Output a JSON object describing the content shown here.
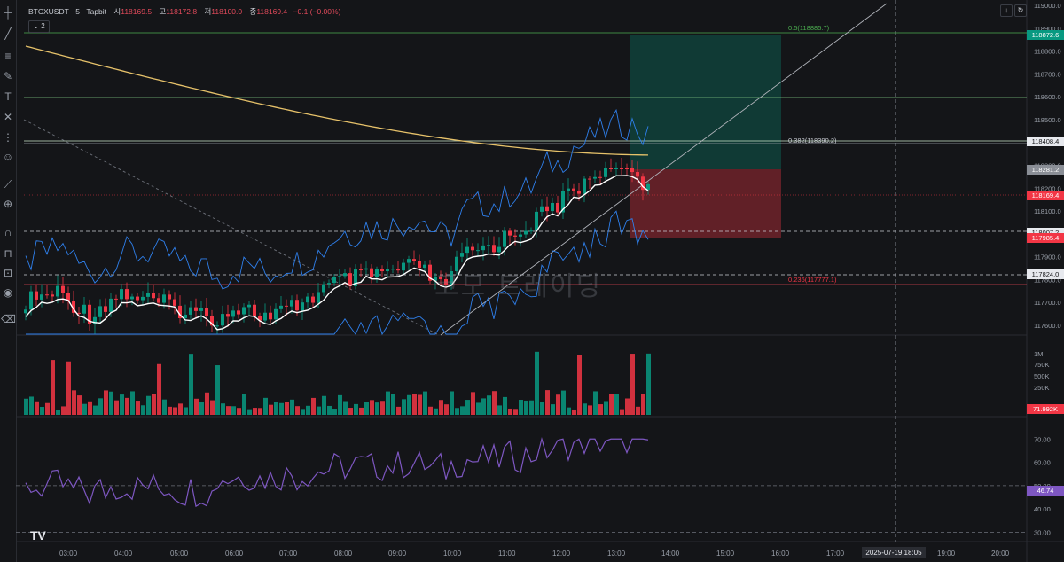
{
  "legend": {
    "symbol": "BTCXUSDT · 5 · Tapbit",
    "open_label": "시",
    "open": "118169.5",
    "high_label": "고",
    "high": "118172.8",
    "low_label": "저",
    "low": "118100.0",
    "close_label": "종",
    "close": "118169.4",
    "change": "−0.1 (−0.00%)",
    "collapse_label": "⌄ 2"
  },
  "price_axis": {
    "ticks": [
      "119000.0",
      "118900.0",
      "118800.0",
      "118700.0",
      "118600.0",
      "118500.0",
      "118400.0",
      "118300.0",
      "118200.0",
      "118100.0",
      "118000.0",
      "117900.0",
      "117800.0",
      "117700.0",
      "117600.0"
    ],
    "tags": [
      {
        "value": "118872.6",
        "color": "#089981"
      },
      {
        "value": "118408.4",
        "color": "#e7e9ee"
      },
      {
        "value": "118281.2",
        "color": "#8a8e96"
      },
      {
        "value": "118169.4",
        "color": "#f23645"
      },
      {
        "value": "118007.2",
        "color": "#e7e9ee"
      },
      {
        "value": "117985.4",
        "color": "#f23645"
      },
      {
        "value": "117824.0",
        "color": "#e7e9ee"
      }
    ]
  },
  "fib": {
    "level_05": "0.5(118885.7)",
    "level_0382": "0.382(118390.2)",
    "level_0236": "0.236(117777.1)"
  },
  "volume_axis": {
    "ticks": [
      "1M",
      "750K",
      "500K",
      "250K"
    ],
    "last": "71.992K"
  },
  "rsi_axis": {
    "ticks": [
      "70.00",
      "60.00",
      "50.00",
      "40.00",
      "30.00"
    ],
    "last": "46.74"
  },
  "time_axis": {
    "labels": [
      "03:00",
      "04:00",
      "05:00",
      "06:00",
      "07:00",
      "08:00",
      "09:00",
      "10:00",
      "11:00",
      "12:00",
      "13:00",
      "14:00",
      "15:00",
      "16:00",
      "17:00",
      "19:00",
      "20:00"
    ],
    "cursor": "2025-07-19  18:05"
  },
  "watermark": "코모 트레이딩",
  "logo": "TV",
  "icons": [
    "crosshair-icon",
    "trendline-icon",
    "horizontal-lines-icon",
    "brush-icon",
    "text-icon",
    "pattern-icon",
    "measure-icon",
    "emoji-icon",
    "ruler-icon",
    "zoom-icon",
    "magnet-icon",
    "lock-icon",
    "eye-icon",
    "trash-icon"
  ],
  "colors": {
    "up": "#089981",
    "down": "#f23645",
    "ema": "#e7c26a",
    "bb": "#2f80ed",
    "rsi": "#7e57c2"
  }
}
